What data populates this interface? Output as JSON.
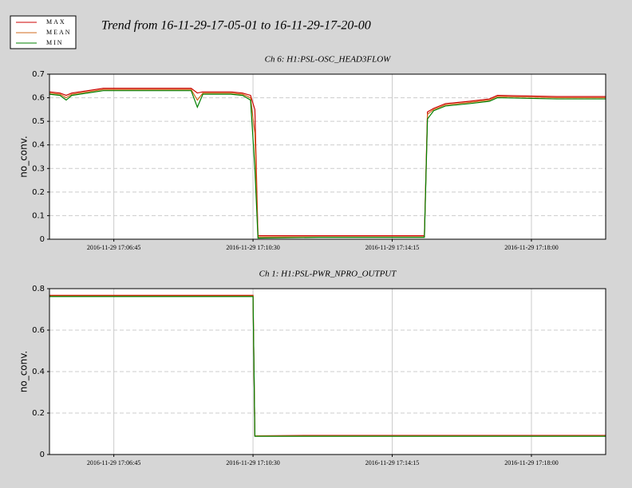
{
  "title": "Trend from 16-11-29-17-05-01 to 16-11-29-17-20-00",
  "chart_data": [
    {
      "type": "line",
      "title": "Ch 6: H1:PSL-OSC_HEAD3FLOW",
      "y_label": "no_conv.",
      "x": [
        "2016-11-29 17:05:01",
        "2016-11-29 17:05:18",
        "2016-11-29 17:05:28",
        "2016-11-29 17:05:37",
        "2016-11-29 17:06:28",
        "2016-11-29 17:07:58",
        "2016-11-29 17:08:50",
        "2016-11-29 17:09:00",
        "2016-11-29 17:09:09",
        "2016-11-29 17:09:54",
        "2016-11-29 17:10:13",
        "2016-11-29 17:10:26",
        "2016-11-29 17:10:33",
        "2016-11-29 17:10:38",
        "2016-11-29 17:12:16",
        "2016-11-29 17:15:07",
        "2016-11-29 17:15:12",
        "2016-11-29 17:15:22",
        "2016-11-29 17:15:41",
        "2016-11-29 17:16:20",
        "2016-11-29 17:16:52",
        "2016-11-29 17:17:05",
        "2016-11-29 17:18:41",
        "2016-11-29 17:19:57",
        "2016-11-29 17:20:00"
      ],
      "series": [
        {
          "name": "MAX",
          "color": "#cc0000",
          "values": [
            0.625,
            0.62,
            0.61,
            0.62,
            0.64,
            0.64,
            0.64,
            0.62,
            0.625,
            0.625,
            0.62,
            0.61,
            0.55,
            0.015,
            0.015,
            0.015,
            0.54,
            0.555,
            0.575,
            0.585,
            0.595,
            0.61,
            0.605,
            0.605,
            0.605
          ]
        },
        {
          "name": "MEAN",
          "color": "#d2691e",
          "values": [
            0.62,
            0.615,
            0.6,
            0.615,
            0.635,
            0.635,
            0.635,
            0.59,
            0.62,
            0.62,
            0.615,
            0.6,
            0.45,
            0.01,
            0.01,
            0.01,
            0.53,
            0.55,
            0.57,
            0.58,
            0.59,
            0.605,
            0.6,
            0.6,
            0.6
          ]
        },
        {
          "name": "MIN",
          "color": "#008000",
          "values": [
            0.615,
            0.61,
            0.59,
            0.61,
            0.63,
            0.63,
            0.63,
            0.56,
            0.615,
            0.615,
            0.61,
            0.59,
            0.3,
            0.005,
            0.008,
            0.008,
            0.51,
            0.545,
            0.565,
            0.575,
            0.585,
            0.6,
            0.595,
            0.595,
            0.595
          ]
        }
      ],
      "xlim": [
        "2016-11-29 17:05:01",
        "2016-11-29 17:20:00"
      ],
      "xticks": [
        "2016-11-29 17:06:45",
        "2016-11-29 17:10:30",
        "2016-11-29 17:14:15",
        "2016-11-29 17:18:00"
      ],
      "ylim": [
        0,
        0.7
      ],
      "yticks": [
        0,
        0.1,
        0.2,
        0.3,
        0.4,
        0.5,
        0.6,
        0.7
      ],
      "grid": true
    },
    {
      "type": "line",
      "title": "Ch 1: H1:PSL-PWR_NPRO_OUTPUT",
      "y_label": "no_conv.",
      "x": [
        "2016-11-29 17:05:01",
        "2016-11-29 17:07:00",
        "2016-11-29 17:09:00",
        "2016-11-29 17:10:30",
        "2016-11-29 17:10:33",
        "2016-11-29 17:12:00",
        "2016-11-29 17:15:00",
        "2016-11-29 17:18:00",
        "2016-11-29 17:20:00"
      ],
      "series": [
        {
          "name": "MAX",
          "color": "#cc0000",
          "values": [
            0.768,
            0.768,
            0.768,
            0.768,
            0.09,
            0.092,
            0.092,
            0.092,
            0.092
          ]
        },
        {
          "name": "MEAN",
          "color": "#d2691e",
          "values": [
            0.765,
            0.765,
            0.765,
            0.765,
            0.09,
            0.09,
            0.09,
            0.09,
            0.09
          ]
        },
        {
          "name": "MIN",
          "color": "#008000",
          "values": [
            0.762,
            0.762,
            0.762,
            0.762,
            0.088,
            0.088,
            0.088,
            0.088,
            0.088
          ]
        }
      ],
      "xlim": [
        "2016-11-29 17:05:01",
        "2016-11-29 17:20:00"
      ],
      "xticks": [
        "2016-11-29 17:06:45",
        "2016-11-29 17:10:30",
        "2016-11-29 17:14:15",
        "2016-11-29 17:18:00"
      ],
      "ylim": [
        0,
        0.8
      ],
      "yticks": [
        0,
        0.2,
        0.4,
        0.6,
        0.8
      ],
      "grid": true
    }
  ]
}
